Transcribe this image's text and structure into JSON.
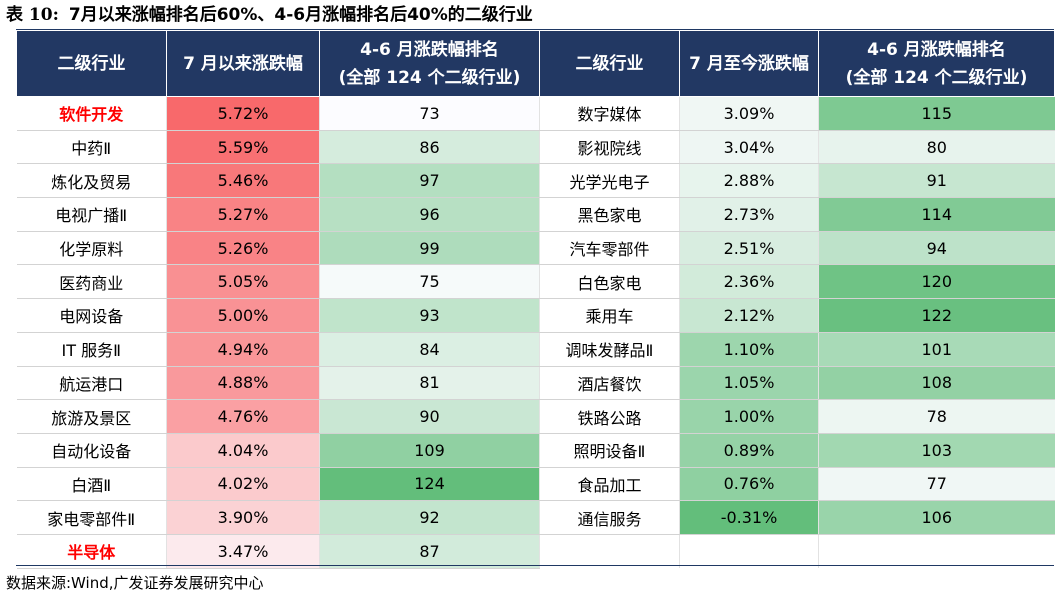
{
  "title": {
    "label": "表 10:",
    "text": "7月以来涨幅排名后60%、4-6月涨幅排名后40%的二级行业"
  },
  "headers": {
    "industry": "二级行业",
    "jul_change": "7 月以来涨跌幅",
    "rank_line1": "4-6 月涨跌幅排名",
    "rank_line2": "(全部 124 个二级行业)",
    "industry_right": "二级行业",
    "jul_change_right": "7 月至今涨跌幅"
  },
  "left_rows": [
    {
      "name": "软件开发",
      "change": "5.72%",
      "rank": "73",
      "highlight": true
    },
    {
      "name": "中药Ⅱ",
      "change": "5.59%",
      "rank": "86",
      "highlight": false
    },
    {
      "name": "炼化及贸易",
      "change": "5.46%",
      "rank": "97",
      "highlight": false
    },
    {
      "name": "电视广播Ⅱ",
      "change": "5.27%",
      "rank": "96",
      "highlight": false
    },
    {
      "name": "化学原料",
      "change": "5.26%",
      "rank": "99",
      "highlight": false
    },
    {
      "name": "医药商业",
      "change": "5.05%",
      "rank": "75",
      "highlight": false
    },
    {
      "name": "电网设备",
      "change": "5.00%",
      "rank": "93",
      "highlight": false
    },
    {
      "name": "IT 服务Ⅱ",
      "change": "4.94%",
      "rank": "84",
      "highlight": false
    },
    {
      "name": "航运港口",
      "change": "4.88%",
      "rank": "81",
      "highlight": false
    },
    {
      "name": "旅游及景区",
      "change": "4.76%",
      "rank": "90",
      "highlight": false
    },
    {
      "name": "自动化设备",
      "change": "4.04%",
      "rank": "109",
      "highlight": false
    },
    {
      "name": "白酒Ⅱ",
      "change": "4.02%",
      "rank": "124",
      "highlight": false
    },
    {
      "name": "家电零部件Ⅱ",
      "change": "3.90%",
      "rank": "92",
      "highlight": false
    },
    {
      "name": "半导体",
      "change": "3.47%",
      "rank": "87",
      "highlight": true
    }
  ],
  "right_rows": [
    {
      "name": "数字媒体",
      "change": "3.09%",
      "rank": "115"
    },
    {
      "name": "影视院线",
      "change": "3.04%",
      "rank": "80"
    },
    {
      "name": "光学光电子",
      "change": "2.88%",
      "rank": "91"
    },
    {
      "name": "黑色家电",
      "change": "2.73%",
      "rank": "114"
    },
    {
      "name": "汽车零部件",
      "change": "2.51%",
      "rank": "94"
    },
    {
      "name": "白色家电",
      "change": "2.36%",
      "rank": "120"
    },
    {
      "name": "乘用车",
      "change": "2.12%",
      "rank": "122"
    },
    {
      "name": "调味发酵品Ⅱ",
      "change": "1.10%",
      "rank": "101"
    },
    {
      "name": "酒店餐饮",
      "change": "1.05%",
      "rank": "108"
    },
    {
      "name": "铁路公路",
      "change": "1.00%",
      "rank": "78"
    },
    {
      "name": "照明设备Ⅱ",
      "change": "0.89%",
      "rank": "103"
    },
    {
      "name": "食品加工",
      "change": "0.76%",
      "rank": "77"
    },
    {
      "name": "通信服务",
      "change": "-0.31%",
      "rank": "106"
    }
  ],
  "footer": "数据来源:Wind,广发证券发展研究中心",
  "colors": {
    "header_bg": "#223863",
    "highlight_text": "#ff0000",
    "change_high": "#f8696b",
    "change_low": "#fcfcff",
    "green_dark": "#63be7b",
    "green_light": "#fcfcff"
  }
}
